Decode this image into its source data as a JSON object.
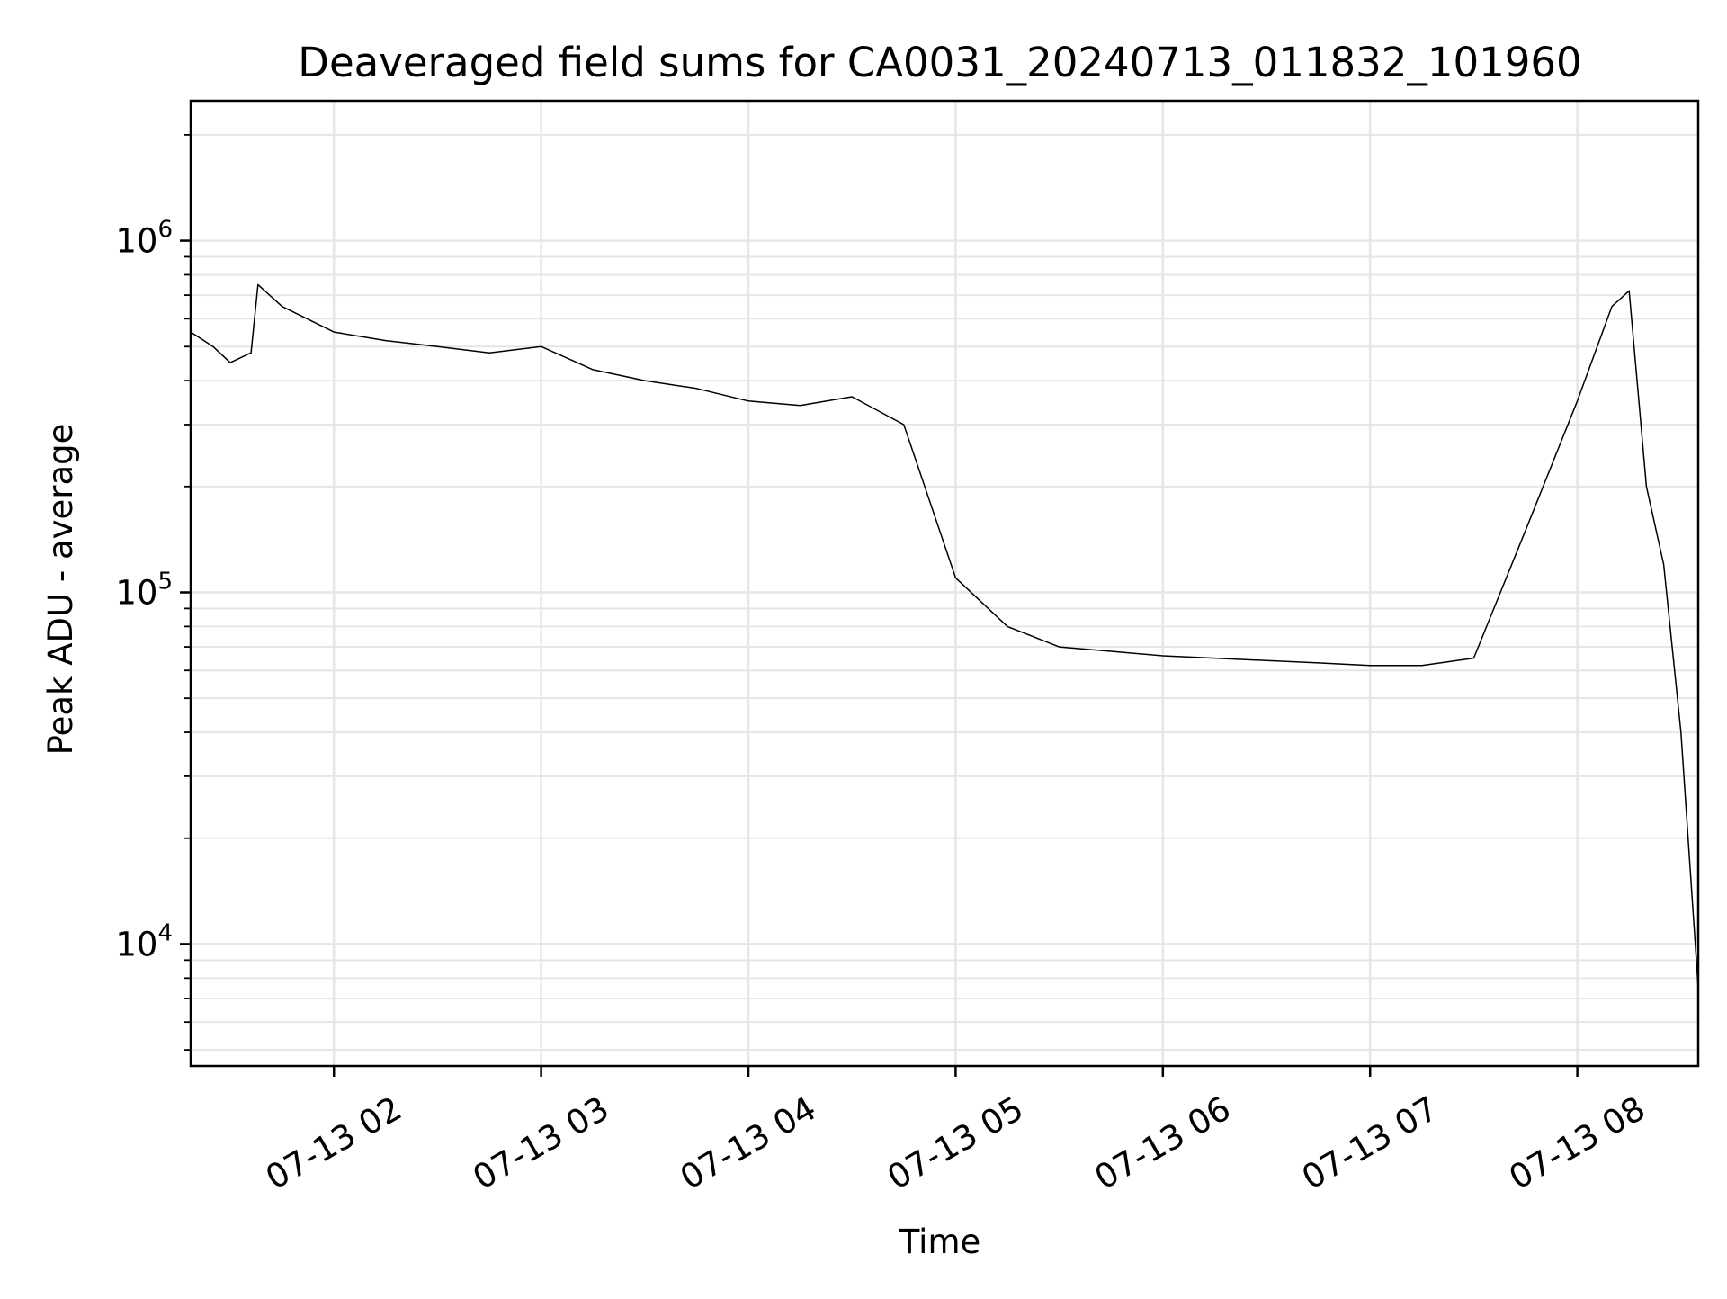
{
  "chart_data": {
    "type": "line",
    "title": "Deaveraged field sums for CA0031_20240713_011832_101960",
    "xlabel": "Time",
    "ylabel": "Peak ADU - average",
    "y_scale": "log",
    "grid": true,
    "line_color": "#000000",
    "grid_color": "#e6e6e6",
    "xlim": [
      "2024-07-13 01:18:32",
      "2024-07-13 08:35:00"
    ],
    "ylim": [
      4500,
      2500000
    ],
    "x_ticks": [
      {
        "t": "2024-07-13 02:00",
        "label": "07-13 02"
      },
      {
        "t": "2024-07-13 03:00",
        "label": "07-13 03"
      },
      {
        "t": "2024-07-13 04:00",
        "label": "07-13 04"
      },
      {
        "t": "2024-07-13 05:00",
        "label": "07-13 05"
      },
      {
        "t": "2024-07-13 06:00",
        "label": "07-13 06"
      },
      {
        "t": "2024-07-13 07:00",
        "label": "07-13 07"
      },
      {
        "t": "2024-07-13 08:00",
        "label": "07-13 08"
      }
    ],
    "y_ticks": [
      {
        "value": 10000,
        "base": "10",
        "exp": "4"
      },
      {
        "value": 100000,
        "base": "10",
        "exp": "5"
      },
      {
        "value": 1000000,
        "base": "10",
        "exp": "6"
      }
    ],
    "series": [
      {
        "x": [
          "2024-07-13 01:18:32",
          "2024-07-13 01:25",
          "2024-07-13 01:30",
          "2024-07-13 01:36",
          "2024-07-13 01:38",
          "2024-07-13 01:45",
          "2024-07-13 02:00",
          "2024-07-13 02:15",
          "2024-07-13 02:30",
          "2024-07-13 02:45",
          "2024-07-13 03:00",
          "2024-07-13 03:15",
          "2024-07-13 03:30",
          "2024-07-13 03:45",
          "2024-07-13 04:00",
          "2024-07-13 04:15",
          "2024-07-13 04:30",
          "2024-07-13 04:45",
          "2024-07-13 05:00",
          "2024-07-13 05:15",
          "2024-07-13 05:30",
          "2024-07-13 05:45",
          "2024-07-13 06:00",
          "2024-07-13 06:15",
          "2024-07-13 06:30",
          "2024-07-13 06:45",
          "2024-07-13 07:00",
          "2024-07-13 07:15",
          "2024-07-13 07:30",
          "2024-07-13 07:45",
          "2024-07-13 08:00",
          "2024-07-13 08:10",
          "2024-07-13 08:15",
          "2024-07-13 08:20",
          "2024-07-13 08:25",
          "2024-07-13 08:30",
          "2024-07-13 08:35"
        ],
        "y": [
          550000,
          500000,
          450000,
          480000,
          750000,
          650000,
          550000,
          520000,
          500000,
          480000,
          500000,
          430000,
          400000,
          380000,
          350000,
          340000,
          360000,
          300000,
          110000,
          80000,
          70000,
          68000,
          66000,
          65000,
          64000,
          63000,
          62000,
          62000,
          65000,
          150000,
          350000,
          650000,
          720000,
          200000,
          120000,
          40000,
          7500
        ]
      }
    ]
  }
}
